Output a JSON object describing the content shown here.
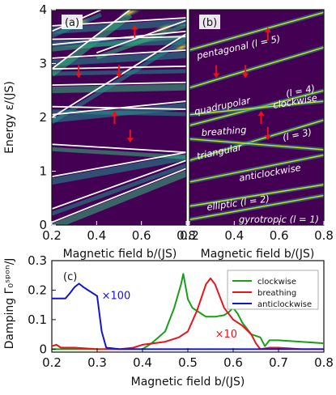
{
  "chart_data": [
    {
      "type": "heatmap",
      "panel_label": "(a)",
      "xlabel": "Magnetic field b/(JS)",
      "ylabel": "Energy ε/(JS)",
      "xlim": [
        0.2,
        0.8
      ],
      "ylim": [
        0,
        4
      ],
      "x_ticks": [
        "0.2",
        "0.4",
        "0.6",
        "0.8"
      ],
      "y_ticks": [
        "0",
        "1",
        "2",
        "3",
        "4"
      ],
      "colors": {
        "background": "#440154",
        "bright": "#fde725",
        "line": "#ffffff",
        "arrow": "#e8141a"
      },
      "white_lines": [
        {
          "x": [
            0.2,
            0.8
          ],
          "y": [
            0.05,
            1.05
          ]
        },
        {
          "x": [
            0.2,
            0.8
          ],
          "y": [
            0.3,
            1.2
          ]
        },
        {
          "x": [
            0.2,
            0.8
          ],
          "y": [
            0.9,
            1.35
          ]
        },
        {
          "x": [
            0.2,
            0.8
          ],
          "y": [
            1.5,
            1.35
          ]
        },
        {
          "x": [
            0.2,
            0.8
          ],
          "y": [
            2.05,
            2.3
          ]
        },
        {
          "x": [
            0.2,
            0.8
          ],
          "y": [
            2.2,
            2.15
          ]
        },
        {
          "x": [
            0.2,
            0.8
          ],
          "y": [
            2.6,
            2.65
          ]
        },
        {
          "x": [
            0.2,
            0.8
          ],
          "y": [
            2.9,
            2.95
          ]
        },
        {
          "x": [
            0.2,
            0.8
          ],
          "y": [
            3.1,
            3.25
          ]
        },
        {
          "x": [
            0.2,
            0.8
          ],
          "y": [
            3.35,
            3.6
          ]
        },
        {
          "x": [
            0.2,
            0.8
          ],
          "y": [
            3.7,
            3.85
          ]
        },
        {
          "x": [
            0.2,
            0.8
          ],
          "y": [
            2.0,
            3.55
          ]
        },
        {
          "x": [
            0.2,
            0.55
          ],
          "y": [
            2.9,
            4.0
          ]
        },
        {
          "x": [
            0.2,
            0.42
          ],
          "y": [
            3.6,
            4.0
          ]
        },
        {
          "x": [
            0.2,
            0.8
          ],
          "y": [
            3.45,
            3.5
          ]
        },
        {
          "x": [
            0.4,
            0.8
          ],
          "y": [
            3.2,
            3.8
          ]
        }
      ],
      "arrows": [
        {
          "x": 0.57,
          "y": 3.6,
          "dir": "up"
        },
        {
          "x": 0.32,
          "y": 2.85,
          "dir": "down"
        },
        {
          "x": 0.5,
          "y": 2.85,
          "dir": "down"
        },
        {
          "x": 0.48,
          "y": 2.0,
          "dir": "up"
        },
        {
          "x": 0.55,
          "y": 1.65,
          "dir": "down"
        }
      ]
    },
    {
      "type": "heatmap",
      "panel_label": "(b)",
      "xlabel": "Magnetic field b/(JS)",
      "xlim": [
        0.2,
        0.8
      ],
      "ylim": [
        0,
        4
      ],
      "x_ticks": [
        "0.2",
        "0.4",
        "0.6",
        "0.8"
      ],
      "mode_labels": [
        "pentagonal (l = 5)",
        "(l = 4)",
        "quadrupolar",
        "clockwise",
        "breathing",
        "(l = 3)",
        "triangular",
        "anticlockwise",
        "elliptic (l = 2)",
        "gyrotropic (l = 1)"
      ],
      "mode_lines": [
        {
          "x": [
            0.2,
            0.8
          ],
          "y": [
            0.1,
            0.55
          ]
        },
        {
          "x": [
            0.2,
            0.8
          ],
          "y": [
            0.35,
            0.75
          ]
        },
        {
          "x": [
            0.2,
            0.8
          ],
          "y": [
            0.8,
            1.3
          ]
        },
        {
          "x": [
            0.2,
            0.8
          ],
          "y": [
            1.2,
            1.95
          ]
        },
        {
          "x": [
            0.2,
            0.8
          ],
          "y": [
            1.6,
            1.4
          ]
        },
        {
          "x": [
            0.2,
            0.8
          ],
          "y": [
            1.85,
            2.5
          ]
        },
        {
          "x": [
            0.2,
            0.8
          ],
          "y": [
            2.55,
            3.3
          ]
        },
        {
          "x": [
            0.2,
            0.8
          ],
          "y": [
            3.25,
            3.95
          ]
        },
        {
          "x": [
            0.2,
            0.8
          ],
          "y": [
            2.05,
            2.3
          ]
        }
      ],
      "arrows": [
        {
          "x": 0.55,
          "y": 3.55,
          "dir": "up"
        },
        {
          "x": 0.32,
          "y": 2.85,
          "dir": "down"
        },
        {
          "x": 0.45,
          "y": 2.85,
          "dir": "down"
        },
        {
          "x": 0.52,
          "y": 2.0,
          "dir": "up"
        },
        {
          "x": 0.55,
          "y": 1.7,
          "dir": "down"
        }
      ]
    },
    {
      "type": "line",
      "panel_label": "(c)",
      "xlabel": "Magnetic field b/(JS)",
      "ylabel": "Damping Γ₀ˢᵖᵒⁿ/J",
      "xlim": [
        0.2,
        0.8
      ],
      "ylim": [
        -0.01,
        0.3
      ],
      "x_ticks": [
        "0.2",
        "0.3",
        "0.4",
        "0.5",
        "0.6",
        "0.7",
        "0.8"
      ],
      "y_ticks": [
        "0",
        "0.1",
        "0.2",
        "0.3"
      ],
      "legend_position": "top-right",
      "annotations": [
        {
          "text": "×100",
          "x": 0.31,
          "y": 0.17,
          "color": "#1414d2"
        },
        {
          "text": "×10",
          "x": 0.56,
          "y": 0.04,
          "color": "#e8141a"
        }
      ],
      "series": [
        {
          "name": "clockwise",
          "color": "#17a017",
          "x": [
            0.2,
            0.3,
            0.4,
            0.42,
            0.45,
            0.47,
            0.485,
            0.49,
            0.5,
            0.51,
            0.52,
            0.54,
            0.56,
            0.58,
            0.59,
            0.6,
            0.61,
            0.62,
            0.64,
            0.66,
            0.67,
            0.68,
            0.7,
            0.75,
            0.8
          ],
          "y": [
            0.0,
            0.0,
            0.0,
            0.02,
            0.06,
            0.14,
            0.22,
            0.255,
            0.17,
            0.14,
            0.13,
            0.11,
            0.11,
            0.115,
            0.125,
            0.14,
            0.12,
            0.09,
            0.05,
            0.04,
            0.01,
            0.03,
            0.03,
            0.025,
            0.02
          ]
        },
        {
          "name": "breathing",
          "color": "#e8141a",
          "x": [
            0.2,
            0.21,
            0.22,
            0.25,
            0.3,
            0.35,
            0.38,
            0.4,
            0.45,
            0.48,
            0.5,
            0.52,
            0.54,
            0.55,
            0.56,
            0.58,
            0.6,
            0.62,
            0.64,
            0.65,
            0.66,
            0.68,
            0.7,
            0.75,
            0.78,
            0.8
          ],
          "y": [
            0.01,
            0.015,
            0.005,
            0.005,
            0.0,
            0.0,
            0.005,
            0.015,
            0.025,
            0.04,
            0.06,
            0.13,
            0.22,
            0.24,
            0.22,
            0.14,
            0.1,
            0.08,
            0.05,
            0.02,
            0.0,
            0.005,
            0.005,
            0.0,
            0.0,
            0.0
          ]
        },
        {
          "name": "anticlockwise",
          "color": "#1414d2",
          "x": [
            0.2,
            0.23,
            0.24,
            0.25,
            0.26,
            0.27,
            0.28,
            0.3,
            0.31,
            0.32,
            0.35,
            0.4,
            0.5,
            0.6,
            0.7,
            0.8
          ],
          "y": [
            0.172,
            0.172,
            0.19,
            0.21,
            0.222,
            0.21,
            0.2,
            0.18,
            0.06,
            0.005,
            0.0,
            0.0,
            0.0,
            0.0,
            0.0,
            0.0
          ]
        }
      ]
    }
  ]
}
